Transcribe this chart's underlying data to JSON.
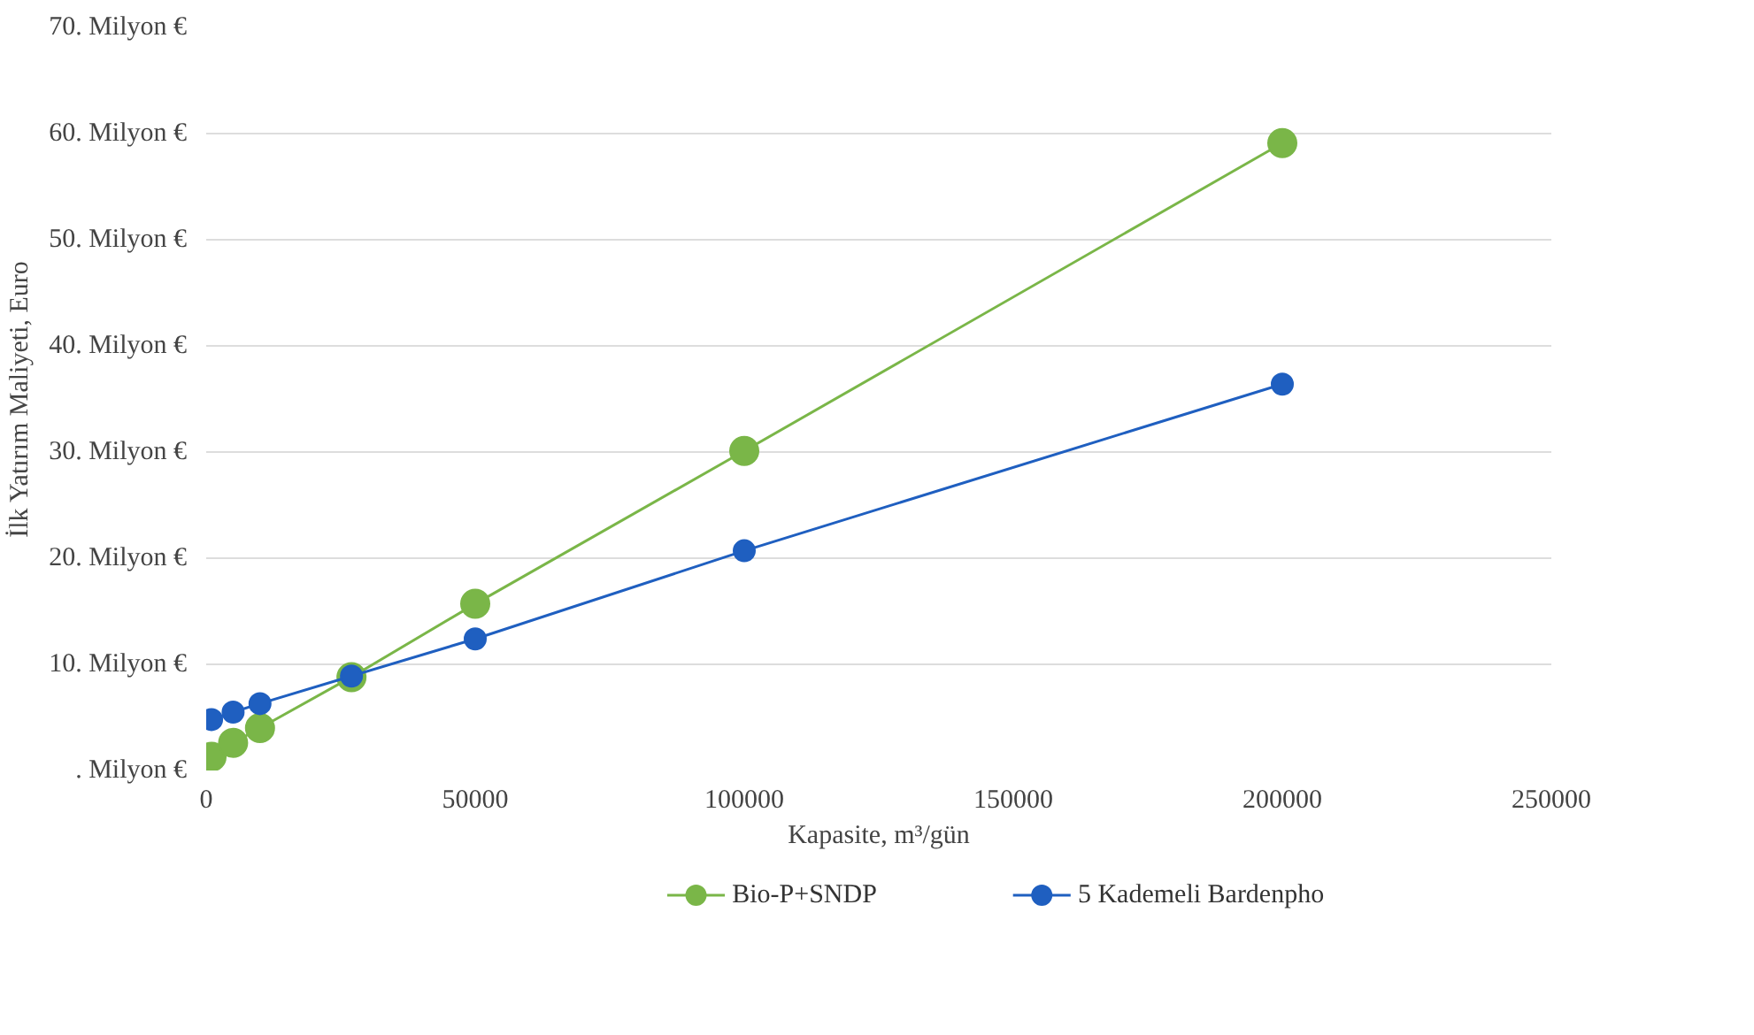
{
  "chart_data": {
    "type": "line",
    "xlabel": "Kapasite, m³/gün",
    "ylabel": "İlk Yatırım Maliyeti, Euro",
    "x": [
      1000,
      5000,
      10000,
      27000,
      50000,
      100000,
      200000
    ],
    "series": [
      {
        "name": "Bio-P+SNDP",
        "color": "#7ab648",
        "values": [
          1.3,
          2.6,
          4.0,
          8.8,
          15.7,
          30.1,
          59.1
        ]
      },
      {
        "name": "5 Kademeli Bardenpho",
        "color": "#1f5fc0",
        "values": [
          4.8,
          5.5,
          6.3,
          8.9,
          12.4,
          20.7,
          36.4
        ]
      }
    ],
    "xlim": [
      0,
      250000
    ],
    "xticks": [
      0,
      50000,
      100000,
      150000,
      200000,
      250000
    ],
    "ylim": [
      0,
      70
    ],
    "yticks": [
      {
        "value": 0,
        "label": ". Milyon €"
      },
      {
        "value": 10,
        "label": "10. Milyon €"
      },
      {
        "value": 20,
        "label": "20. Milyon €"
      },
      {
        "value": 30,
        "label": "30. Milyon €"
      },
      {
        "value": 40,
        "label": "40. Milyon €"
      },
      {
        "value": 50,
        "label": "50. Milyon €"
      },
      {
        "value": 60,
        "label": "60. Milyon €"
      },
      {
        "value": 70,
        "label": "70. Milyon €"
      }
    ],
    "grid": "y",
    "legend": "bottom",
    "marker": "circle",
    "line_style": "solid"
  }
}
